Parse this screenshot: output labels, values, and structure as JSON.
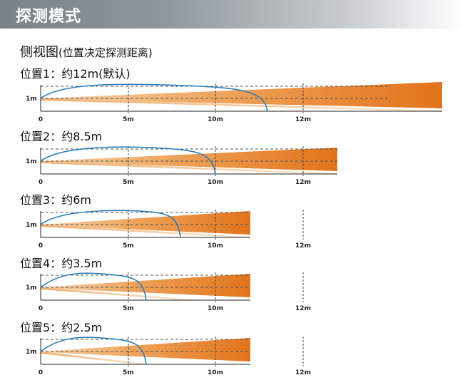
{
  "header": {
    "title": "探测模式"
  },
  "subtitle": {
    "main": "侧视图",
    "note": "(位置决定探测距离)"
  },
  "height_label": "1m",
  "colors": {
    "beam_dark": "#e07b1c",
    "beam_light": "#f4c58c",
    "arc": "#2d7fb8",
    "dashed": "#555555"
  },
  "positions": [
    {
      "name": "位置1",
      "distance": "约12m(默认)",
      "ticks": [
        "0",
        "5m",
        "10m",
        "12m"
      ],
      "range_m": 12
    },
    {
      "name": "位置2",
      "distance": "约8.5m",
      "ticks": [
        "0",
        "5m",
        "10m",
        "12m"
      ],
      "range_m": 8.5
    },
    {
      "name": "位置3",
      "distance": "约6m",
      "ticks": [
        "0",
        "5m",
        "10m",
        "12m"
      ],
      "range_m": 6
    },
    {
      "name": "位置4",
      "distance": "约3.5m",
      "ticks": [
        "0",
        "5m",
        "10m",
        "12m"
      ],
      "range_m": 3.5
    },
    {
      "name": "位置5",
      "distance": "约2.5m",
      "ticks": [
        "0",
        "5m",
        "10m",
        "12m"
      ],
      "range_m": 2.5
    }
  ]
}
